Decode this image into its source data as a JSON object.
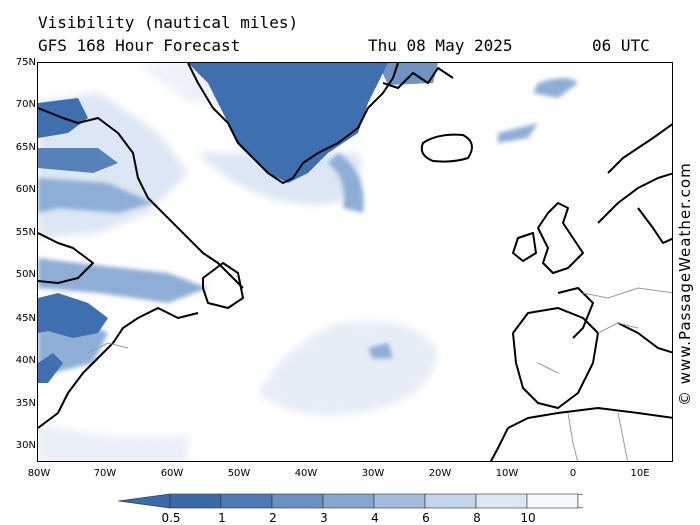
{
  "header": {
    "title": "Visibility (nautical miles)",
    "subtitle": "GFS 168 Hour Forecast",
    "date": "Thu 08 May 2025",
    "time": "06 UTC"
  },
  "credit": "© www.PassageWeather.com",
  "axes": {
    "latitudes": [
      "75N",
      "70N",
      "65N",
      "60N",
      "55N",
      "50N",
      "45N",
      "40N",
      "35N",
      "30N"
    ],
    "longitudes": [
      "80W",
      "70W",
      "60W",
      "50W",
      "40W",
      "30W",
      "20W",
      "10W",
      "0",
      "10E"
    ]
  },
  "legend": {
    "labels": [
      "0.5",
      "1",
      "2",
      "3",
      "4",
      "6",
      "8",
      "10"
    ],
    "colors": [
      "#3a6aa8",
      "#4d7bb8",
      "#6a90c6",
      "#86a6d2",
      "#a3bcde",
      "#c2d3ea",
      "#dde7f4",
      "#f4f7fc"
    ]
  },
  "colors": {
    "low_visibility": "#3f6fae",
    "medium_visibility": "#8eaed6",
    "high_visibility": "#dce6f4",
    "coastline": "#000000",
    "border": "#9a9a9a"
  }
}
